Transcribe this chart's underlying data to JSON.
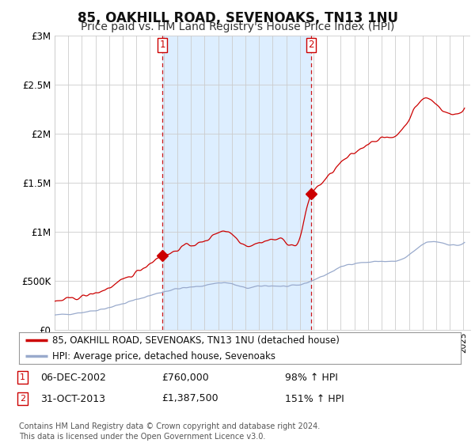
{
  "title": "85, OAKHILL ROAD, SEVENOAKS, TN13 1NU",
  "subtitle": "Price paid vs. HM Land Registry's House Price Index (HPI)",
  "title_fontsize": 12,
  "subtitle_fontsize": 10,
  "background_color": "#ffffff",
  "plot_bg_color": "#ffffff",
  "grid_color": "#cccccc",
  "red_line_color": "#cc0000",
  "blue_line_color": "#99aacc",
  "shade_color": "#ddeeff",
  "dashed_line_color": "#cc0000",
  "legend_label_red": "85, OAKHILL ROAD, SEVENOAKS, TN13 1NU (detached house)",
  "legend_label_blue": "HPI: Average price, detached house, Sevenoaks",
  "annotation1_date": "06-DEC-2002",
  "annotation1_price": "£760,000",
  "annotation1_pct": "98% ↑ HPI",
  "annotation2_date": "31-OCT-2013",
  "annotation2_price": "£1,387,500",
  "annotation2_pct": "151% ↑ HPI",
  "footer": "Contains HM Land Registry data © Crown copyright and database right 2024.\nThis data is licensed under the Open Government Licence v3.0.",
  "ylim": [
    0,
    3000000
  ],
  "yticks": [
    0,
    500000,
    1000000,
    1500000,
    2000000,
    2500000,
    3000000
  ],
  "ytick_labels": [
    "£0",
    "£500K",
    "£1M",
    "£1.5M",
    "£2M",
    "£2.5M",
    "£3M"
  ],
  "marker1_x": 2002.92,
  "marker1_y": 760000,
  "marker2_x": 2013.83,
  "marker2_y": 1387500,
  "xmin": 1995,
  "xmax": 2025.5,
  "xticks": [
    1995,
    1996,
    1997,
    1998,
    1999,
    2000,
    2001,
    2002,
    2003,
    2004,
    2005,
    2006,
    2007,
    2008,
    2009,
    2010,
    2011,
    2012,
    2013,
    2014,
    2015,
    2016,
    2017,
    2018,
    2019,
    2020,
    2021,
    2022,
    2023,
    2024,
    2025
  ]
}
